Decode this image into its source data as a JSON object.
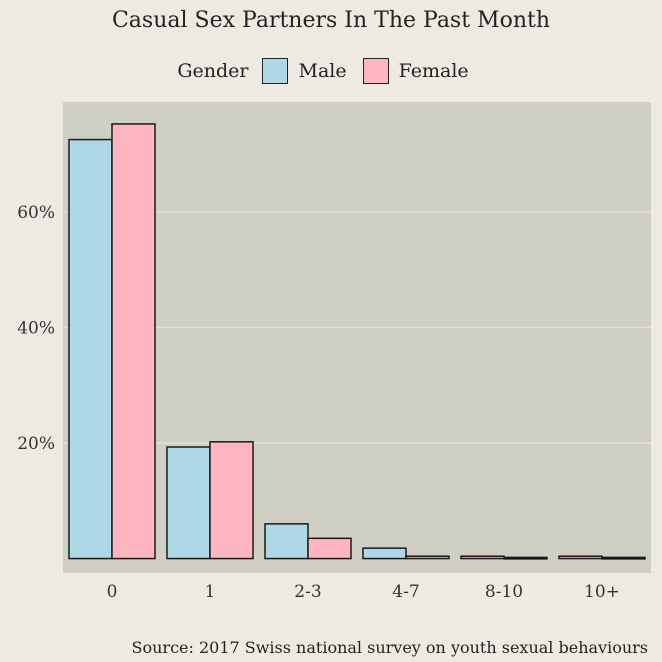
{
  "title": "Casual Sex Partners In The Past Month",
  "legend": {
    "title": "Gender",
    "items": [
      {
        "label": "Male",
        "color": "#add8e6"
      },
      {
        "label": "Female",
        "color": "#ffb6c1"
      }
    ]
  },
  "caption": "Source: 2017 Swiss national survey on youth sexual behaviours",
  "chart_data": {
    "type": "bar",
    "title": "Casual Sex Partners In The Past Month",
    "xlabel": "",
    "ylabel": "",
    "categories": [
      "0",
      "1",
      "2-3",
      "4-7",
      "8-10",
      "10+"
    ],
    "series": [
      {
        "name": "Male",
        "color": "#add8e6",
        "values": [
          72.5,
          19.3,
          6.0,
          1.8,
          0.4,
          0.4
        ]
      },
      {
        "name": "Female",
        "color": "#ffb6c1",
        "values": [
          75.2,
          20.2,
          3.5,
          0.4,
          0.2,
          0.2
        ]
      }
    ],
    "yticks": [
      20,
      40,
      60
    ],
    "ytick_labels": [
      "20%",
      "40%",
      "60%"
    ],
    "ylim": [
      -2.5,
      79
    ],
    "grid": true,
    "legend_position": "top",
    "panel_color": "#d0cfc4",
    "grid_color": "#e6e4da"
  }
}
